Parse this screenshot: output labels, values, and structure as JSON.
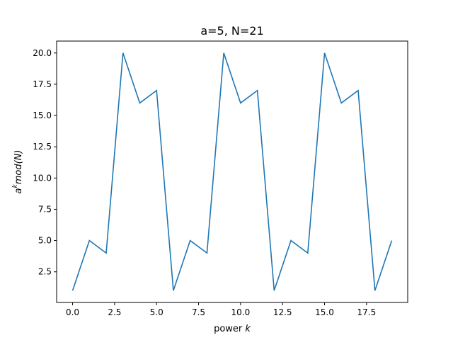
{
  "chart_data": {
    "type": "line",
    "title": "a=5, N=21",
    "xlabel": {
      "prefix": "power ",
      "var": "k"
    },
    "ylabel": {
      "base": "a",
      "sup": "k",
      "expr": "mod(N)"
    },
    "x": [
      0,
      1,
      2,
      3,
      4,
      5,
      6,
      7,
      8,
      9,
      10,
      11,
      12,
      13,
      14,
      15,
      16,
      17,
      18,
      19
    ],
    "series": [
      {
        "values": [
          1,
          5,
          4,
          20,
          16,
          17,
          1,
          5,
          4,
          20,
          16,
          17,
          1,
          5,
          4,
          20,
          16,
          17,
          1,
          5
        ]
      }
    ],
    "xlim": [
      -0.95,
      19.95
    ],
    "ylim": [
      0.05,
      20.95
    ],
    "xticks": [
      0,
      2.5,
      5,
      7.5,
      10,
      12.5,
      15,
      17.5
    ],
    "xtick_labels": [
      "0.0",
      "2.5",
      "5.0",
      "7.5",
      "10.0",
      "12.5",
      "15.0",
      "17.5"
    ],
    "yticks": [
      2.5,
      5,
      7.5,
      10,
      12.5,
      15,
      17.5,
      20
    ],
    "ytick_labels": [
      "2.5",
      "5.0",
      "7.5",
      "10.0",
      "12.5",
      "15.0",
      "17.5",
      "20.0"
    ],
    "line_color": "#1f77b4",
    "grid": false,
    "legend": "none"
  }
}
